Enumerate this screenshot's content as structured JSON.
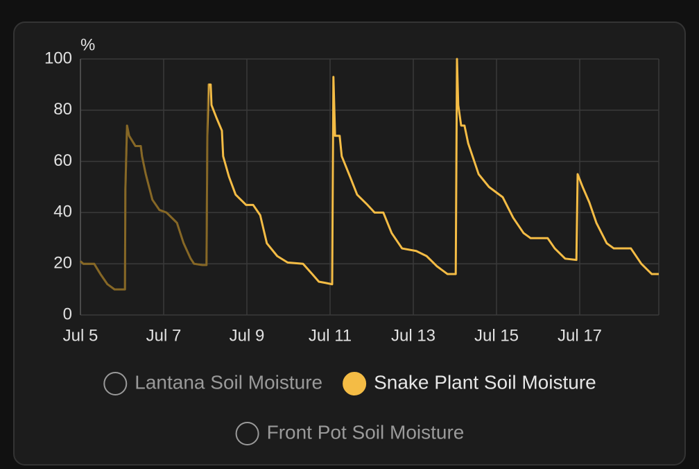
{
  "chart_data": {
    "type": "line",
    "unit": "%",
    "xlim": [
      5,
      18.9
    ],
    "xticks": [
      {
        "value": 5,
        "label": "Jul 5"
      },
      {
        "value": 7,
        "label": "Jul 7"
      },
      {
        "value": 9,
        "label": "Jul 9"
      },
      {
        "value": 11,
        "label": "Jul 11"
      },
      {
        "value": 13,
        "label": "Jul 13"
      },
      {
        "value": 15,
        "label": "Jul 15"
      },
      {
        "value": 17,
        "label": "Jul 17"
      }
    ],
    "ylim": [
      0,
      100
    ],
    "yticks": [
      0,
      20,
      40,
      60,
      80,
      100
    ],
    "grid": true,
    "x": [
      5.0,
      5.07,
      5.33,
      5.48,
      5.65,
      5.82,
      6.07,
      6.08,
      6.12,
      6.17,
      6.32,
      6.45,
      6.48,
      6.57,
      6.73,
      6.9,
      7.07,
      7.32,
      7.48,
      7.65,
      7.73,
      7.93,
      8.03,
      8.05,
      8.08,
      8.13,
      8.15,
      8.27,
      8.4,
      8.43,
      8.57,
      8.73,
      8.98,
      9.15,
      9.32,
      9.48,
      9.73,
      9.98,
      10.35,
      10.57,
      10.73,
      10.9,
      11.05,
      11.08,
      11.12,
      11.23,
      11.28,
      11.48,
      11.65,
      11.9,
      12.07,
      12.28,
      12.48,
      12.73,
      13.07,
      13.32,
      13.57,
      13.82,
      14.02,
      14.05,
      14.08,
      14.15,
      14.23,
      14.32,
      14.57,
      14.82,
      15.15,
      15.4,
      15.65,
      15.82,
      16.23,
      16.4,
      16.65,
      16.92,
      16.95,
      17.07,
      17.23,
      17.4,
      17.65,
      17.82,
      18.23,
      18.48,
      18.73,
      18.9
    ],
    "series": [
      {
        "name": "Lantana Soil Moisture",
        "hidden": true
      },
      {
        "name": "Snake Plant Soil Moisture",
        "color": "#f4bc45",
        "hidden": false,
        "values": [
          21,
          20,
          20,
          16,
          12,
          10,
          10,
          49,
          74,
          70,
          66,
          66,
          62,
          55,
          45,
          41,
          40,
          36,
          28,
          22,
          20,
          19.5,
          19.5,
          70,
          90,
          90,
          82,
          77,
          72,
          62,
          54,
          47,
          43,
          43,
          39,
          28,
          23,
          20.5,
          20,
          16,
          13,
          12.5,
          12,
          93,
          70,
          70,
          62,
          54,
          47,
          43,
          40,
          40,
          32,
          26,
          25,
          23,
          19,
          16,
          16,
          100,
          82,
          74,
          74,
          67,
          55,
          50,
          46,
          38,
          32,
          30,
          30,
          26,
          22,
          21.5,
          55,
          50,
          44,
          36,
          28,
          26,
          26,
          20,
          16,
          16
        ]
      },
      {
        "name": "Front Pot Soil Moisture",
        "hidden": true
      }
    ]
  }
}
